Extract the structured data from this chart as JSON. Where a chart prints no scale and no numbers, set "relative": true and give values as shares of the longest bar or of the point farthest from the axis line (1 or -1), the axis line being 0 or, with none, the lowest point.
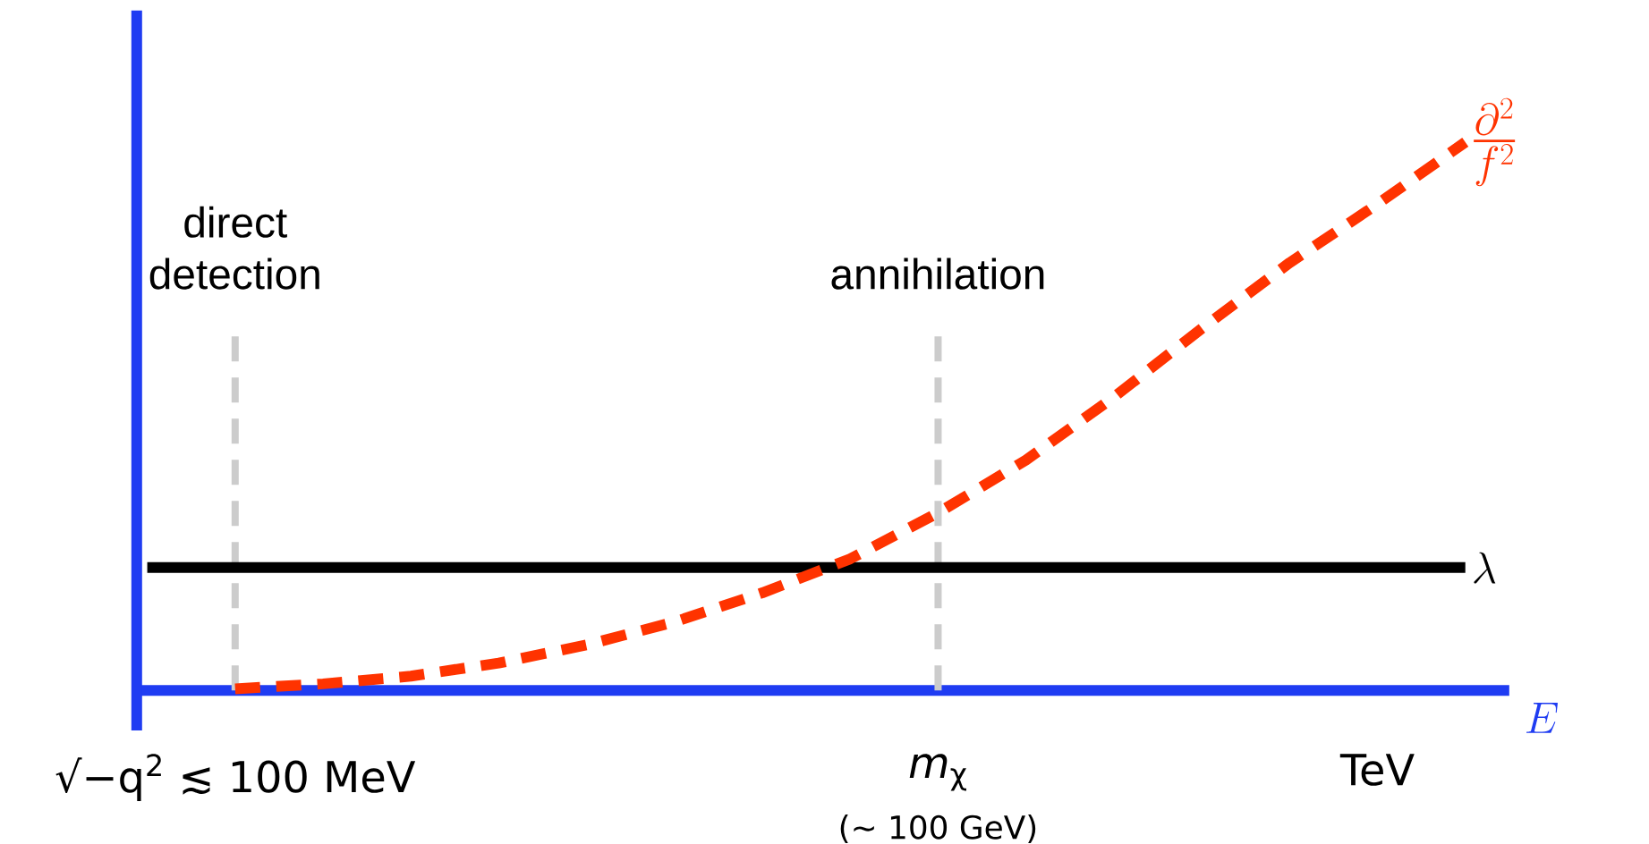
{
  "chart_data": {
    "type": "line",
    "relative": true,
    "xlabel": "E",
    "categories": [
      null,
      "√−q$^{2}$ ≲ 100 MeV",
      null,
      null,
      null,
      null,
      null,
      null,
      null,
      "*m*$_{χ}$",
      null,
      null,
      null,
      null,
      "TeV",
      null
    ],
    "annotations": [
      "(∼ 100 GeV)"
    ],
    "ref_lines": [
      {
        "axis": "x",
        "value": "√−q$^{2}$ ≲ 100 MeV",
        "label": "direct detection",
        "color": "#cccccc",
        "line_style": "dashed"
      },
      {
        "axis": "x",
        "value": "*m*$_{χ}$",
        "label": "annihilation",
        "color": "#cccccc",
        "line_style": "dashed"
      }
    ],
    "legend": false,
    "marker": "none",
    "series": [
      {
        "name": "\\lambda",
        "color": "#000000",
        "line_style": "solid",
        "values": [
          0.224,
          0.224,
          0.224,
          0.224,
          0.224,
          0.224,
          0.224,
          0.224,
          0.224,
          0.224,
          0.224,
          0.224,
          0.224,
          0.224,
          0.224,
          0.224
        ]
      },
      {
        "name": "\\frac{\\partial^2}{f^2}",
        "color": "#ff3300",
        "line_style": "dashed",
        "values": [
          null,
          0.003,
          0.012,
          0.026,
          0.05,
          0.083,
          0.125,
          0.178,
          0.24,
          0.324,
          0.42,
          0.535,
          0.66,
          0.78,
          0.887,
          1
        ]
      }
    ]
  }
}
